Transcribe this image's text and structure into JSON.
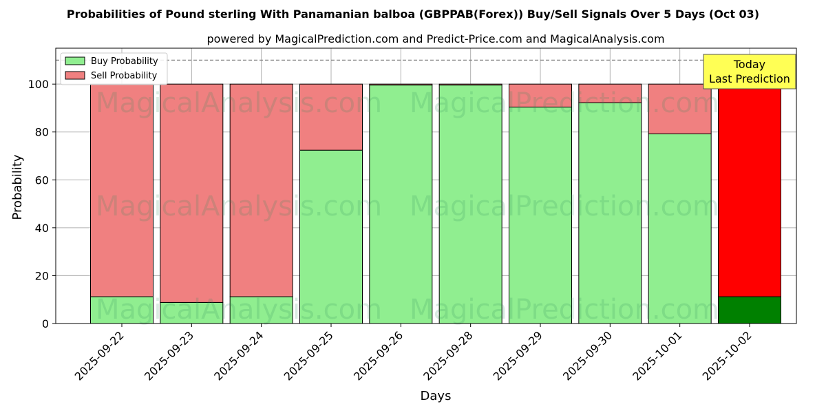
{
  "chart_data": {
    "type": "bar",
    "stacked": true,
    "title": "Probabilities of Pound sterling With Panamanian balboa (GBPPAB(Forex)) Buy/Sell Signals Over 5 Days (Oct 03)",
    "subtitle": "powered by MagicalPrediction.com and Predict-Price.com and MagicalAnalysis.com",
    "xlabel": "Days",
    "ylabel": "Probability",
    "ylim": [
      0,
      115
    ],
    "yticks": [
      "0",
      "20",
      "40",
      "60",
      "80",
      "100"
    ],
    "grid": true,
    "legend_position": "top-left",
    "reference_line": 110,
    "categories": [
      "2025-09-22",
      "2025-09-23",
      "2025-09-24",
      "2025-09-25",
      "2025-09-26",
      "2025-09-28",
      "2025-09-29",
      "2025-09-30",
      "2025-10-01",
      "2025-10-02"
    ],
    "series": [
      {
        "name": "Buy Probability",
        "values": [
          11.2,
          8.8,
          11.2,
          72.4,
          99.6,
          99.6,
          90.4,
          92.2,
          79.2,
          11.2
        ],
        "color": "#90ee90",
        "highlight_color": "#008000"
      },
      {
        "name": "Sell Probability",
        "values": [
          88.8,
          91.2,
          88.8,
          27.6,
          0.4,
          0.4,
          9.6,
          7.8,
          20.8,
          88.8
        ],
        "color": "#f08080",
        "highlight_color": "#ff0000"
      }
    ],
    "highlight_index": 9,
    "annotation": {
      "line1": "Today",
      "line2": "Last Prediction",
      "color": "#ffff55"
    },
    "watermarks": [
      "MagicalAnalysis.com",
      "MagicalPrediction.com"
    ]
  }
}
